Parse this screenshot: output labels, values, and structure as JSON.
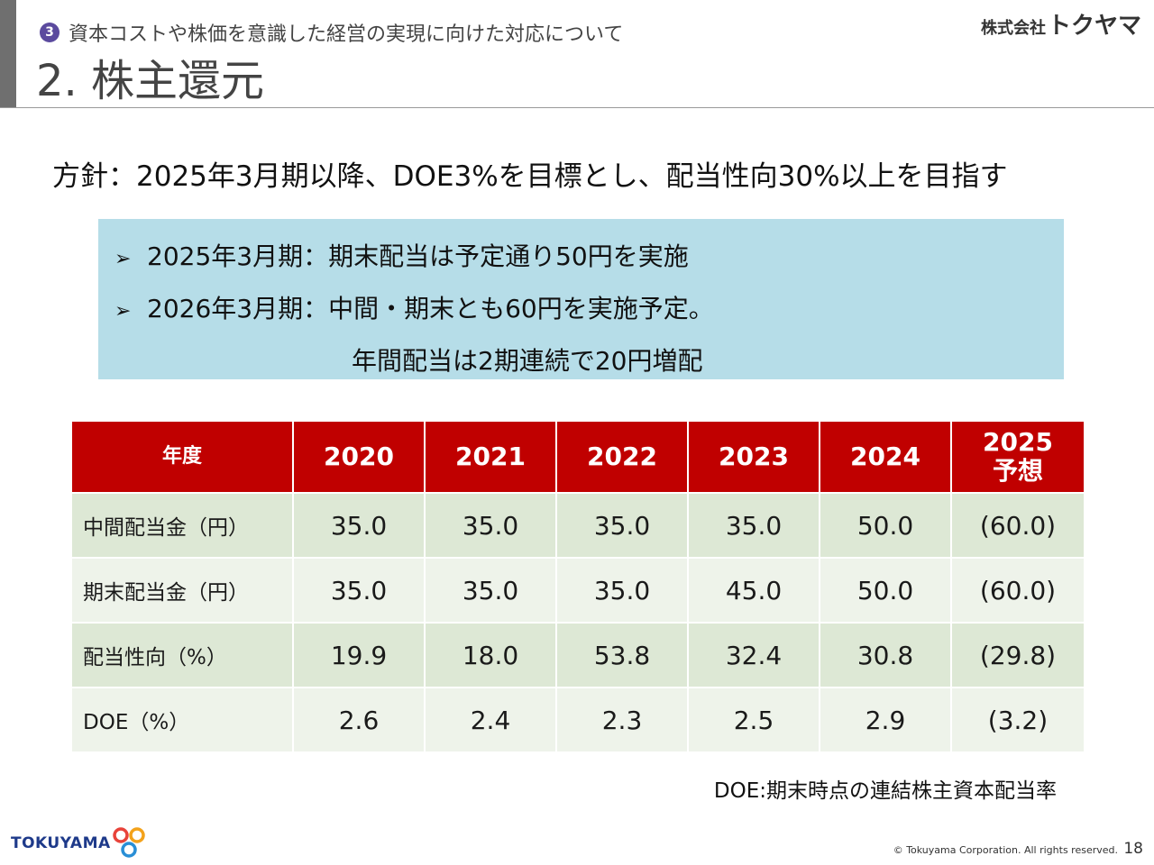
{
  "header": {
    "section_number": "3",
    "section_title": "資本コストや株価を意識した経営の実現に向けた対応について",
    "page_title": "2. 株主還元",
    "company_prefix": "株式会社",
    "company_name": "トクヤマ"
  },
  "policy": "方針：2025年3月期以降、DOE3%を目標とし、配当性向30%以上を目指す",
  "callout": {
    "item1": "2025年3月期：期末配当は予定通り50円を実施",
    "item2": "2026年3月期：中間・期末とも60円を実施予定。",
    "item2_cont": "年間配当は2期連続で20円増配"
  },
  "table": {
    "header_label": "年度",
    "years": [
      "2020",
      "2021",
      "2022",
      "2023",
      "2024"
    ],
    "forecast_year": "2025",
    "forecast_label": "予想",
    "rows": [
      {
        "label": "中間配当金（円）",
        "values": [
          "35.0",
          "35.0",
          "35.0",
          "35.0",
          "50.0",
          "(60.0)"
        ]
      },
      {
        "label": "期末配当金（円）",
        "values": [
          "35.0",
          "35.0",
          "35.0",
          "45.0",
          "50.0",
          "(60.0)"
        ]
      },
      {
        "label": "配当性向（%）",
        "values": [
          "19.9",
          "18.0",
          "53.8",
          "32.4",
          "30.8",
          "(29.8)"
        ]
      },
      {
        "label": "DOE（%）",
        "values": [
          "2.6",
          "2.4",
          "2.3",
          "2.5",
          "2.9",
          "(3.2)"
        ]
      }
    ]
  },
  "note": "DOE:期末時点の連結株主資本配当率",
  "footer": {
    "logo_text": "TOKUYAMA",
    "copyright": "© Tokuyama Corporation. All rights reserved.",
    "page_number": "18"
  },
  "colors": {
    "table_header": "#c00000",
    "row_odd": "#dde8d5",
    "row_even": "#eef3ea",
    "callout_bg": "#b6dde8",
    "section_badge": "#5b4a9e"
  }
}
